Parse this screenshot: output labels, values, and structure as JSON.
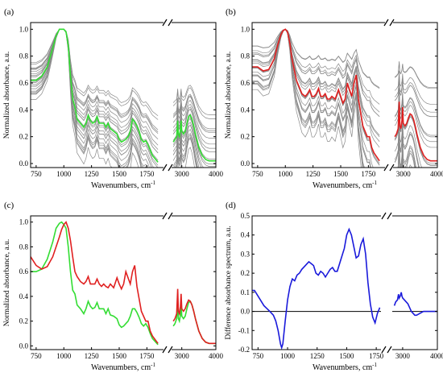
{
  "chart_data": [
    {
      "panel_label": "(a)",
      "type": "line",
      "xlabel": "Wavenumbers, cm",
      "xlabel_sup": "-1",
      "ylabel": "Normalized absorbance, a.u.",
      "x_segments": [
        {
          "range": [
            700,
            1900
          ],
          "ticks": [
            750,
            1000,
            1250,
            1500,
            1750
          ]
        },
        {
          "range": [
            2700,
            4000
          ],
          "ticks": [
            3000,
            4000
          ]
        }
      ],
      "ylim": [
        -0.03,
        1.05
      ],
      "yticks": [
        "0.0",
        "0.2",
        "0.4",
        "0.6",
        "0.8",
        "1.0"
      ],
      "ensemble": {
        "color": "#8a8a8a",
        "count": 22,
        "spread": 0.32
      },
      "series": [
        {
          "color": "#33dd33",
          "seg1": {
            "x": [
              700,
              750,
              800,
              850,
              900,
              930,
              960,
              980,
              1000,
              1020,
              1040,
              1060,
              1080,
              1100,
              1120,
              1150,
              1180,
              1200,
              1220,
              1240,
              1260,
              1280,
              1300,
              1320,
              1340,
              1360,
              1380,
              1400,
              1420,
              1450,
              1480,
              1500,
              1520,
              1540,
              1560,
              1580,
              1600,
              1620,
              1640,
              1660,
              1680,
              1700,
              1720,
              1740,
              1760,
              1780,
              1800,
              1850
            ],
            "y": [
              0.62,
              0.62,
              0.65,
              0.72,
              0.86,
              0.95,
              1.0,
              1.0,
              1.0,
              0.98,
              0.88,
              0.65,
              0.48,
              0.42,
              0.33,
              0.3,
              0.27,
              0.3,
              0.36,
              0.32,
              0.3,
              0.31,
              0.35,
              0.3,
              0.3,
              0.3,
              0.27,
              0.3,
              0.26,
              0.24,
              0.22,
              0.18,
              0.16,
              0.17,
              0.18,
              0.2,
              0.24,
              0.33,
              0.31,
              0.28,
              0.24,
              0.18,
              0.16,
              0.17,
              0.14,
              0.1,
              0.06,
              0.01
            ]
          },
          "seg2": {
            "x": [
              2750,
              2800,
              2850,
              2880,
              2900,
              2930,
              2960,
              2980,
              3000,
              3050,
              3100,
              3150,
              3200,
              3250,
              3300,
              3350,
              3400,
              3500,
              3600,
              3700,
              3800,
              3900,
              4000
            ],
            "y": [
              0.16,
              0.18,
              0.2,
              0.32,
              0.22,
              0.2,
              0.25,
              0.32,
              0.24,
              0.22,
              0.24,
              0.3,
              0.35,
              0.36,
              0.33,
              0.28,
              0.22,
              0.12,
              0.06,
              0.03,
              0.02,
              0.02,
              0.02
            ]
          }
        }
      ]
    },
    {
      "panel_label": "(b)",
      "type": "line",
      "xlabel": "Wavenumbers, cm",
      "xlabel_sup": "-1",
      "ylabel": "Normalized absorbance, a.u.",
      "x_segments": [
        {
          "range": [
            700,
            1900
          ],
          "ticks": [
            750,
            1000,
            1250,
            1500,
            1750
          ]
        },
        {
          "range": [
            2700,
            4000
          ],
          "ticks": [
            3000,
            4000
          ]
        }
      ],
      "ylim": [
        -0.03,
        1.05
      ],
      "yticks": [
        "0.0",
        "0.2",
        "0.4",
        "0.6",
        "0.8",
        "1.0"
      ],
      "ensemble": {
        "color": "#8a8a8a",
        "count": 22,
        "spread": 0.55
      },
      "series": [
        {
          "color": "#e02020",
          "seg1": {
            "x": [
              700,
              750,
              800,
              850,
              900,
              930,
              960,
              980,
              1000,
              1020,
              1040,
              1060,
              1080,
              1100,
              1120,
              1150,
              1180,
              1200,
              1220,
              1240,
              1260,
              1280,
              1300,
              1320,
              1340,
              1360,
              1380,
              1400,
              1420,
              1450,
              1480,
              1500,
              1520,
              1540,
              1560,
              1580,
              1600,
              1620,
              1640,
              1660,
              1680,
              1700,
              1720,
              1740,
              1760,
              1780,
              1800,
              1850
            ],
            "y": [
              0.72,
              0.72,
              0.69,
              0.7,
              0.78,
              0.88,
              0.96,
              0.99,
              1.0,
              0.98,
              0.9,
              0.78,
              0.7,
              0.62,
              0.58,
              0.52,
              0.5,
              0.52,
              0.55,
              0.5,
              0.5,
              0.52,
              0.56,
              0.5,
              0.5,
              0.52,
              0.48,
              0.48,
              0.5,
              0.48,
              0.55,
              0.5,
              0.45,
              0.48,
              0.6,
              0.55,
              0.5,
              0.6,
              0.66,
              0.48,
              0.38,
              0.28,
              0.24,
              0.2,
              0.2,
              0.12,
              0.08,
              0.02
            ]
          },
          "seg2": {
            "x": [
              2750,
              2800,
              2850,
              2880,
              2900,
              2930,
              2960,
              2980,
              3000,
              3050,
              3100,
              3150,
              3200,
              3250,
              3300,
              3350,
              3400,
              3500,
              3600,
              3700,
              3800,
              3900,
              4000
            ],
            "y": [
              0.2,
              0.22,
              0.26,
              0.46,
              0.28,
              0.26,
              0.32,
              0.42,
              0.3,
              0.28,
              0.3,
              0.34,
              0.37,
              0.36,
              0.33,
              0.28,
              0.22,
              0.12,
              0.06,
              0.03,
              0.02,
              0.02,
              0.02
            ]
          }
        }
      ]
    },
    {
      "panel_label": "(c)",
      "type": "line",
      "xlabel": "Wavenumbers, cm",
      "xlabel_sup": "-1",
      "ylabel": "Normalized absorbance, a.u.",
      "x_segments": [
        {
          "range": [
            700,
            1900
          ],
          "ticks": [
            750,
            1000,
            1250,
            1500,
            1750
          ]
        },
        {
          "range": [
            2700,
            4000
          ],
          "ticks": [
            3000,
            4000
          ]
        }
      ],
      "ylim": [
        -0.03,
        1.05
      ],
      "yticks": [
        "0.0",
        "0.2",
        "0.4",
        "0.6",
        "0.8",
        "1.0"
      ],
      "series": [
        {
          "color": "#33dd33",
          "seg1": {
            "x": [
              700,
              750,
              800,
              850,
              900,
              930,
              960,
              980,
              1000,
              1020,
              1040,
              1060,
              1080,
              1100,
              1120,
              1150,
              1180,
              1200,
              1220,
              1240,
              1260,
              1280,
              1300,
              1320,
              1340,
              1360,
              1380,
              1400,
              1420,
              1450,
              1480,
              1500,
              1520,
              1540,
              1560,
              1580,
              1600,
              1620,
              1640,
              1660,
              1680,
              1700,
              1720,
              1740,
              1760,
              1780,
              1800,
              1850
            ],
            "y": [
              0.6,
              0.6,
              0.62,
              0.7,
              0.84,
              0.95,
              0.99,
              1.0,
              0.98,
              0.95,
              0.8,
              0.6,
              0.45,
              0.42,
              0.33,
              0.3,
              0.26,
              0.3,
              0.36,
              0.32,
              0.3,
              0.31,
              0.35,
              0.3,
              0.3,
              0.3,
              0.26,
              0.3,
              0.25,
              0.24,
              0.22,
              0.17,
              0.15,
              0.16,
              0.18,
              0.2,
              0.24,
              0.3,
              0.3,
              0.27,
              0.23,
              0.18,
              0.16,
              0.18,
              0.15,
              0.1,
              0.06,
              0.01
            ]
          },
          "seg2": {
            "x": [
              2750,
              2800,
              2850,
              2880,
              2900,
              2930,
              2960,
              2980,
              3000,
              3050,
              3100,
              3150,
              3200,
              3250,
              3300,
              3350,
              3400,
              3500,
              3600,
              3700,
              3800,
              3900,
              4000
            ],
            "y": [
              0.16,
              0.18,
              0.22,
              0.34,
              0.22,
              0.2,
              0.25,
              0.34,
              0.24,
              0.22,
              0.24,
              0.3,
              0.35,
              0.36,
              0.33,
              0.28,
              0.22,
              0.12,
              0.06,
              0.03,
              0.02,
              0.02,
              0.02
            ]
          }
        },
        {
          "color": "#e02020",
          "seg1": {
            "x": [
              700,
              750,
              800,
              850,
              900,
              930,
              960,
              980,
              1000,
              1020,
              1040,
              1060,
              1080,
              1100,
              1120,
              1150,
              1180,
              1200,
              1220,
              1240,
              1260,
              1280,
              1300,
              1320,
              1340,
              1360,
              1380,
              1400,
              1420,
              1450,
              1480,
              1500,
              1520,
              1540,
              1560,
              1580,
              1600,
              1620,
              1640,
              1660,
              1680,
              1700,
              1720,
              1740,
              1760,
              1780,
              1800,
              1850
            ],
            "y": [
              0.72,
              0.65,
              0.62,
              0.64,
              0.72,
              0.8,
              0.88,
              0.94,
              0.98,
              1.0,
              0.95,
              0.85,
              0.72,
              0.6,
              0.56,
              0.52,
              0.5,
              0.52,
              0.56,
              0.5,
              0.5,
              0.5,
              0.54,
              0.5,
              0.48,
              0.5,
              0.48,
              0.47,
              0.5,
              0.47,
              0.55,
              0.5,
              0.46,
              0.5,
              0.6,
              0.55,
              0.5,
              0.6,
              0.65,
              0.48,
              0.38,
              0.28,
              0.24,
              0.2,
              0.2,
              0.12,
              0.08,
              0.02
            ]
          },
          "seg2": {
            "x": [
              2750,
              2800,
              2850,
              2880,
              2900,
              2930,
              2960,
              2980,
              3000,
              3050,
              3100,
              3150,
              3200,
              3250,
              3300,
              3350,
              3400,
              3500,
              3600,
              3700,
              3800,
              3900,
              4000
            ],
            "y": [
              0.2,
              0.22,
              0.26,
              0.46,
              0.28,
              0.26,
              0.32,
              0.42,
              0.3,
              0.28,
              0.3,
              0.34,
              0.37,
              0.36,
              0.33,
              0.28,
              0.22,
              0.12,
              0.06,
              0.03,
              0.02,
              0.02,
              0.02
            ]
          }
        }
      ]
    },
    {
      "panel_label": "(d)",
      "type": "line",
      "xlabel": "Wavenumbers, cm",
      "xlabel_sup": "-1",
      "ylabel": "Difference absorbance spectrum, a.u.",
      "x_segments": [
        {
          "range": [
            700,
            1790
          ],
          "ticks": [
            750,
            1000,
            1250,
            1500,
            1750
          ]
        },
        {
          "range": [
            2700,
            4000
          ],
          "ticks": [
            3000,
            4000
          ]
        }
      ],
      "ylim": [
        -0.2,
        0.5
      ],
      "yticks": [
        "-0.2",
        "-0.1",
        "0.0",
        "0.1",
        "0.2",
        "0.3",
        "0.4",
        "0.5"
      ],
      "zero_line": true,
      "series": [
        {
          "color": "#1a1adb",
          "seg1": {
            "x": [
              700,
              720,
              750,
              800,
              850,
              880,
              900,
              920,
              940,
              950,
              960,
              980,
              1000,
              1020,
              1040,
              1060,
              1080,
              1100,
              1120,
              1150,
              1180,
              1200,
              1220,
              1240,
              1260,
              1280,
              1300,
              1320,
              1340,
              1360,
              1380,
              1400,
              1420,
              1450,
              1480,
              1500,
              1520,
              1540,
              1560,
              1580,
              1600,
              1620,
              1640,
              1660,
              1680,
              1700,
              1720,
              1740,
              1760,
              1780
            ],
            "y": [
              0.11,
              0.11,
              0.08,
              0.03,
              0.0,
              -0.02,
              -0.05,
              -0.1,
              -0.17,
              -0.19,
              -0.17,
              -0.05,
              0.06,
              0.13,
              0.17,
              0.16,
              0.19,
              0.2,
              0.22,
              0.24,
              0.26,
              0.25,
              0.24,
              0.2,
              0.19,
              0.21,
              0.2,
              0.18,
              0.2,
              0.22,
              0.23,
              0.21,
              0.21,
              0.27,
              0.33,
              0.4,
              0.43,
              0.4,
              0.34,
              0.28,
              0.29,
              0.35,
              0.38,
              0.3,
              0.15,
              0.04,
              -0.03,
              -0.06,
              -0.01,
              0.02
            ]
          },
          "seg2": {
            "x": [
              2760,
              2800,
              2850,
              2880,
              2900,
              2930,
              2960,
              2980,
              3000,
              3050,
              3100,
              3150,
              3200,
              3250,
              3300,
              3350,
              3400,
              3500,
              3600,
              3700,
              3800,
              3900,
              4000
            ],
            "y": [
              0.03,
              0.05,
              0.06,
              0.09,
              0.07,
              0.08,
              0.1,
              0.08,
              0.07,
              0.06,
              0.05,
              0.04,
              0.02,
              0.0,
              -0.01,
              -0.02,
              -0.02,
              -0.01,
              0.0,
              0.0,
              0.0,
              0.0,
              0.0
            ]
          }
        }
      ]
    }
  ]
}
